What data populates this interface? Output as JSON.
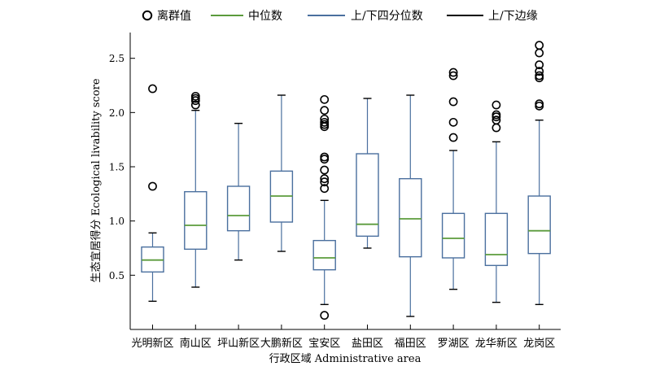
{
  "chart_data": {
    "type": "boxplot",
    "xlabel": "行政区域 Administrative area",
    "ylabel": "生态宜居得分 Ecological livability score",
    "ylim": [
      0,
      2.75
    ],
    "yticks": [
      0.5,
      1.0,
      1.5,
      2.0,
      2.5
    ],
    "ytick_labels": [
      "0.5",
      "1.0",
      "1.5",
      "2.0",
      "2.5"
    ],
    "legend": {
      "position": "top",
      "items": [
        {
          "label": "离群值",
          "kind": "outlier-marker",
          "color": "#000000"
        },
        {
          "label": "中位数",
          "kind": "line",
          "color": "#5b9b3c"
        },
        {
          "label": "上/下四分位数",
          "kind": "line",
          "color": "#4a6f9e"
        },
        {
          "label": "上/下边缘",
          "kind": "line",
          "color": "#000000"
        }
      ]
    },
    "colors": {
      "box": "#4a6f9e",
      "median": "#5b9b3c",
      "axis": "#000000"
    },
    "categories": [
      "光明新区",
      "南山区",
      "坪山新区",
      "大鹏新区",
      "宝安区",
      "盐田区",
      "福田区",
      "罗湖区",
      "龙华新区",
      "龙岗区"
    ],
    "boxes": [
      {
        "whisker_low": 0.26,
        "q1": 0.53,
        "median": 0.64,
        "q3": 0.76,
        "whisker_high": 0.89,
        "outliers": [
          1.32,
          2.22
        ]
      },
      {
        "whisker_low": 0.39,
        "q1": 0.74,
        "median": 0.96,
        "q3": 1.27,
        "whisker_high": 2.02,
        "outliers": [
          2.07,
          2.11,
          2.13,
          2.15
        ]
      },
      {
        "whisker_low": 0.64,
        "q1": 0.91,
        "median": 1.05,
        "q3": 1.32,
        "whisker_high": 1.9,
        "outliers": []
      },
      {
        "whisker_low": 0.72,
        "q1": 0.99,
        "median": 1.23,
        "q3": 1.46,
        "whisker_high": 2.16,
        "outliers": []
      },
      {
        "whisker_low": 0.23,
        "q1": 0.55,
        "median": 0.66,
        "q3": 0.82,
        "whisker_high": 1.19,
        "outliers": [
          0.13,
          1.3,
          1.36,
          1.39,
          1.47,
          1.57,
          1.59,
          1.87,
          1.89,
          1.91,
          1.94,
          2.02,
          2.12
        ]
      },
      {
        "whisker_low": 0.75,
        "q1": 0.86,
        "median": 0.97,
        "q3": 1.62,
        "whisker_high": 2.13,
        "outliers": []
      },
      {
        "whisker_low": 0.12,
        "q1": 0.67,
        "median": 1.02,
        "q3": 1.39,
        "whisker_high": 2.16,
        "outliers": []
      },
      {
        "whisker_low": 0.37,
        "q1": 0.66,
        "median": 0.84,
        "q3": 1.07,
        "whisker_high": 1.65,
        "outliers": [
          1.77,
          1.91,
          2.1,
          2.34,
          2.37
        ]
      },
      {
        "whisker_low": 0.25,
        "q1": 0.59,
        "median": 0.69,
        "q3": 1.07,
        "whisker_high": 1.73,
        "outliers": [
          1.86,
          1.93,
          1.96,
          1.98,
          2.07
        ]
      },
      {
        "whisker_low": 0.23,
        "q1": 0.7,
        "median": 0.91,
        "q3": 1.23,
        "whisker_high": 1.93,
        "outliers": [
          2.06,
          2.08,
          2.32,
          2.34,
          2.38,
          2.44,
          2.55,
          2.62
        ]
      }
    ]
  }
}
